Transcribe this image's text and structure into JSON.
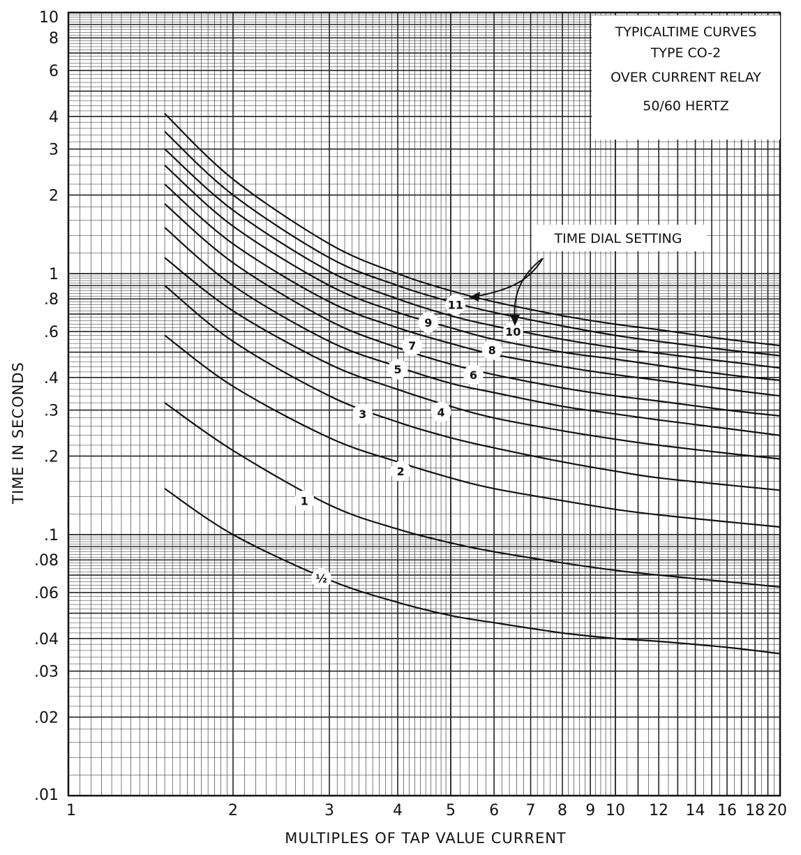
{
  "chart_data": {
    "type": "line",
    "title_lines": [
      "TYPICALTIME CURVES",
      "TYPE CO-2",
      "OVER CURRENT RELAY",
      "50/60 HERTZ"
    ],
    "xlabel": "MULTIPLES OF TAP VALUE CURRENT",
    "ylabel": "TIME    IN  SECONDS",
    "x_scale": "log",
    "y_scale": "log",
    "xlim": [
      1,
      20
    ],
    "ylim": [
      0.01,
      10
    ],
    "grid": true,
    "x_tick_labels": [
      "1",
      "2",
      "3",
      "4",
      "5",
      "6",
      "7",
      "8",
      "9",
      "10",
      "12",
      "14",
      "16",
      "18",
      "20"
    ],
    "x_tick_values": [
      1,
      2,
      3,
      4,
      5,
      6,
      7,
      8,
      9,
      10,
      12,
      14,
      16,
      18,
      20
    ],
    "y_tick_labels": [
      ".01",
      ".02",
      ".03",
      ".04",
      ".06",
      ".08",
      ".1",
      ".2",
      ".3",
      ".4",
      ".6",
      ".8",
      "1",
      "2",
      "3",
      "4",
      "6",
      "8",
      "10"
    ],
    "y_tick_values": [
      0.01,
      0.02,
      0.03,
      0.04,
      0.06,
      0.08,
      0.1,
      0.2,
      0.3,
      0.4,
      0.6,
      0.8,
      1,
      2,
      3,
      4,
      6,
      8,
      10
    ],
    "annotation": "TIME DIAL SETTING",
    "series": [
      {
        "name": "½",
        "x": [
          1.5,
          2,
          3,
          4,
          5,
          6,
          8,
          10,
          12,
          16,
          20
        ],
        "y": [
          0.15,
          0.1,
          0.067,
          0.055,
          0.049,
          0.046,
          0.042,
          0.04,
          0.039,
          0.037,
          0.035
        ],
        "label_at": [
          2.9,
          0.068
        ]
      },
      {
        "name": "1",
        "x": [
          1.5,
          2,
          3,
          4,
          5,
          6,
          8,
          10,
          12,
          16,
          20
        ],
        "y": [
          0.32,
          0.21,
          0.13,
          0.105,
          0.093,
          0.086,
          0.078,
          0.073,
          0.07,
          0.066,
          0.063
        ],
        "label_at": [
          2.7,
          0.135
        ]
      },
      {
        "name": "2",
        "x": [
          1.5,
          2,
          3,
          4,
          5,
          6,
          8,
          10,
          12,
          16,
          20
        ],
        "y": [
          0.58,
          0.37,
          0.235,
          0.19,
          0.165,
          0.15,
          0.135,
          0.125,
          0.119,
          0.112,
          0.107
        ],
        "label_at": [
          4.05,
          0.175
        ]
      },
      {
        "name": "3",
        "x": [
          1.5,
          2,
          3,
          4,
          5,
          6,
          8,
          10,
          12,
          16,
          20
        ],
        "y": [
          0.9,
          0.55,
          0.34,
          0.27,
          0.235,
          0.215,
          0.19,
          0.175,
          0.165,
          0.155,
          0.148
        ],
        "label_at": [
          3.45,
          0.29
        ]
      },
      {
        "name": "4",
        "x": [
          1.5,
          2,
          3,
          4,
          5,
          6,
          8,
          10,
          12,
          16,
          20
        ],
        "y": [
          1.15,
          0.72,
          0.45,
          0.36,
          0.31,
          0.28,
          0.25,
          0.232,
          0.22,
          0.205,
          0.195
        ],
        "label_at": [
          4.8,
          0.295
        ]
      },
      {
        "name": "5",
        "x": [
          1.5,
          2,
          3,
          4,
          5,
          6,
          8,
          10,
          12,
          16,
          20
        ],
        "y": [
          1.5,
          0.9,
          0.55,
          0.44,
          0.38,
          0.35,
          0.31,
          0.29,
          0.275,
          0.255,
          0.24
        ],
        "label_at": [
          4.0,
          0.43
        ]
      },
      {
        "name": "6",
        "x": [
          1.5,
          2,
          3,
          4,
          5,
          6,
          8,
          10,
          12,
          16,
          20
        ],
        "y": [
          1.85,
          1.1,
          0.66,
          0.52,
          0.45,
          0.41,
          0.365,
          0.34,
          0.325,
          0.3,
          0.285
        ],
        "label_at": [
          5.5,
          0.41
        ]
      },
      {
        "name": "7",
        "x": [
          1.5,
          2,
          3,
          4,
          5,
          6,
          8,
          10,
          12,
          16,
          20
        ],
        "y": [
          2.2,
          1.3,
          0.78,
          0.62,
          0.54,
          0.49,
          0.44,
          0.41,
          0.39,
          0.36,
          0.34
        ],
        "label_at": [
          4.25,
          0.53
        ]
      },
      {
        "name": "8",
        "x": [
          1.5,
          2,
          3,
          4,
          5,
          6,
          8,
          10,
          12,
          16,
          20
        ],
        "y": [
          2.6,
          1.52,
          0.9,
          0.71,
          0.62,
          0.56,
          0.5,
          0.47,
          0.445,
          0.41,
          0.39
        ],
        "label_at": [
          5.95,
          0.51
        ]
      },
      {
        "name": "9",
        "x": [
          1.5,
          2,
          3,
          4,
          5,
          6,
          8,
          10,
          12,
          16,
          20
        ],
        "y": [
          3.0,
          1.75,
          1.02,
          0.8,
          0.69,
          0.63,
          0.56,
          0.52,
          0.495,
          0.46,
          0.435
        ],
        "label_at": [
          4.55,
          0.65
        ]
      },
      {
        "name": "10",
        "x": [
          1.5,
          2,
          3,
          4,
          5,
          6,
          8,
          10,
          12,
          16,
          20
        ],
        "y": [
          3.5,
          2.0,
          1.15,
          0.9,
          0.78,
          0.71,
          0.63,
          0.58,
          0.55,
          0.51,
          0.485
        ],
        "label_at": [
          6.5,
          0.6
        ]
      },
      {
        "name": "11",
        "x": [
          1.5,
          2,
          3,
          4,
          5,
          6,
          8,
          10,
          12,
          16,
          20
        ],
        "y": [
          4.1,
          2.3,
          1.3,
          1.0,
          0.86,
          0.78,
          0.69,
          0.64,
          0.61,
          0.56,
          0.53
        ],
        "label_at": [
          5.1,
          0.76
        ]
      }
    ]
  }
}
